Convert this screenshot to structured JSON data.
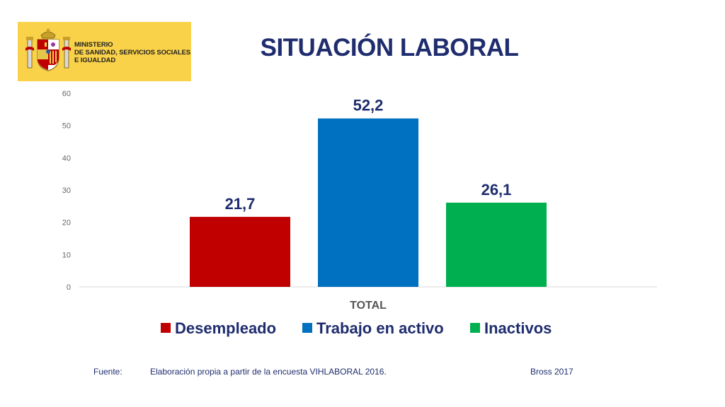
{
  "logo": {
    "lines": [
      "MINISTERIO",
      "DE SANIDAD, SERVICIOS SOCIALES",
      "E IGUALDAD"
    ],
    "emblem": "spanish-coat-of-arms"
  },
  "colors": {
    "title": "#1f2d6e",
    "logo_bg": "#f9d24a",
    "series": [
      "#c00000",
      "#0070c0",
      "#00b050"
    ]
  },
  "chart_data": {
    "type": "bar",
    "title": "SITUACIÓN LABORAL",
    "categories": [
      "TOTAL"
    ],
    "series": [
      {
        "name": "Desempleado",
        "values": [
          21.7
        ],
        "label": "21,7",
        "color": "#c00000"
      },
      {
        "name": "Trabajo en activo",
        "values": [
          52.2
        ],
        "label": "52,2",
        "color": "#0070c0"
      },
      {
        "name": "Inactivos",
        "values": [
          26.1
        ],
        "label": "26,1",
        "color": "#00b050"
      }
    ],
    "ylim": [
      0,
      60
    ],
    "yticks": [
      0,
      10,
      20,
      30,
      40,
      50,
      60
    ],
    "xlabel": "",
    "ylabel": "",
    "grid": false,
    "legend_position": "bottom"
  },
  "footer": {
    "source_label": "Fuente:",
    "source_text": "Elaboración propia a partir de la encuesta  VIHLABORAL 2016.",
    "credit": "Bross 2017"
  }
}
